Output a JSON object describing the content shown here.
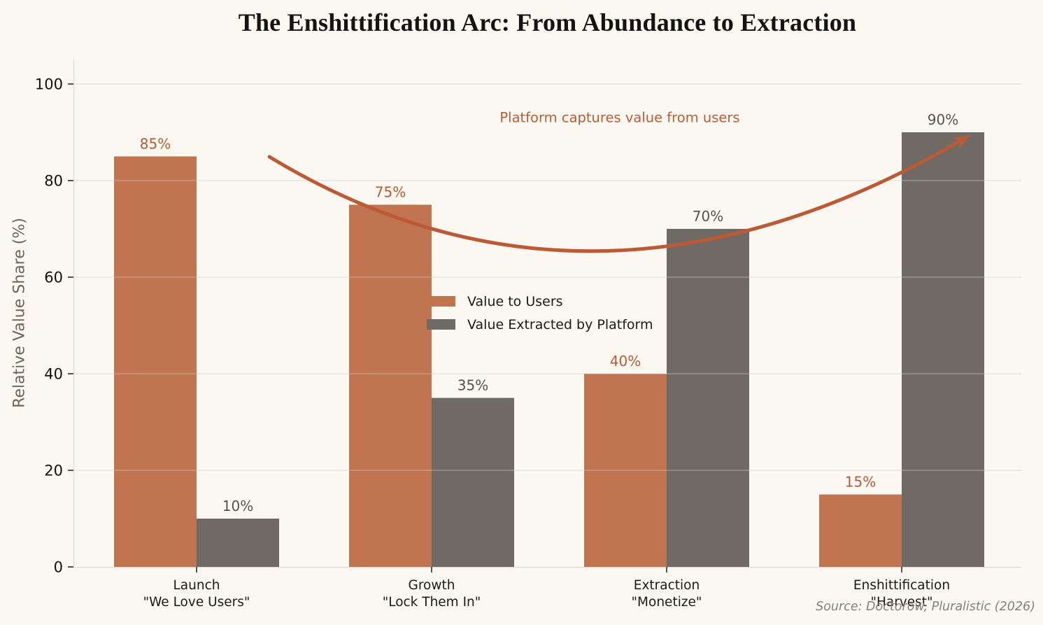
{
  "title": "The Enshittification Arc: From Abundance to Extraction",
  "source_note": "Source: Doctorow, Pluralistic (2026)",
  "chart_data": {
    "type": "bar",
    "title": "The Enshittification Arc: From Abundance to Extraction",
    "ylabel": "Relative Value Share (%)",
    "xlabel": "",
    "ylim": [
      0,
      105
    ],
    "yticks": [
      0,
      20,
      40,
      60,
      80,
      100
    ],
    "grid": true,
    "legend_position": "center",
    "categories": [
      {
        "stage": "Launch",
        "tagline": "\"We Love Users\""
      },
      {
        "stage": "Growth",
        "tagline": "\"Lock Them In\""
      },
      {
        "stage": "Extraction",
        "tagline": "\"Monetize\""
      },
      {
        "stage": "Enshittification",
        "tagline": "\"Harvest\""
      }
    ],
    "series": [
      {
        "name": "Value to Users",
        "values": [
          85,
          75,
          40,
          15
        ],
        "color": "#c0744f",
        "label_color": "#b25b38"
      },
      {
        "name": "Value Extracted by Platform",
        "values": [
          10,
          35,
          70,
          90
        ],
        "color": "#6f6a63",
        "label_color": "#57524c"
      }
    ],
    "value_suffix": "%",
    "annotation": {
      "text": "Platform captures value from users",
      "color": "#b65c38",
      "arrow_color": "#bc5a35",
      "arrow_from_value": "85% bar (Launch)",
      "arrow_to_value": "90% bar (Enshittification)"
    }
  },
  "colors": {
    "background": "#fbf8f1",
    "spine": "#e0dcd2",
    "gridline": "#cccccc",
    "tick": "#2b2b2b",
    "tick_label": "#111111",
    "category_label": "#1a1a1a",
    "y_axis_label": "#6e6459"
  }
}
